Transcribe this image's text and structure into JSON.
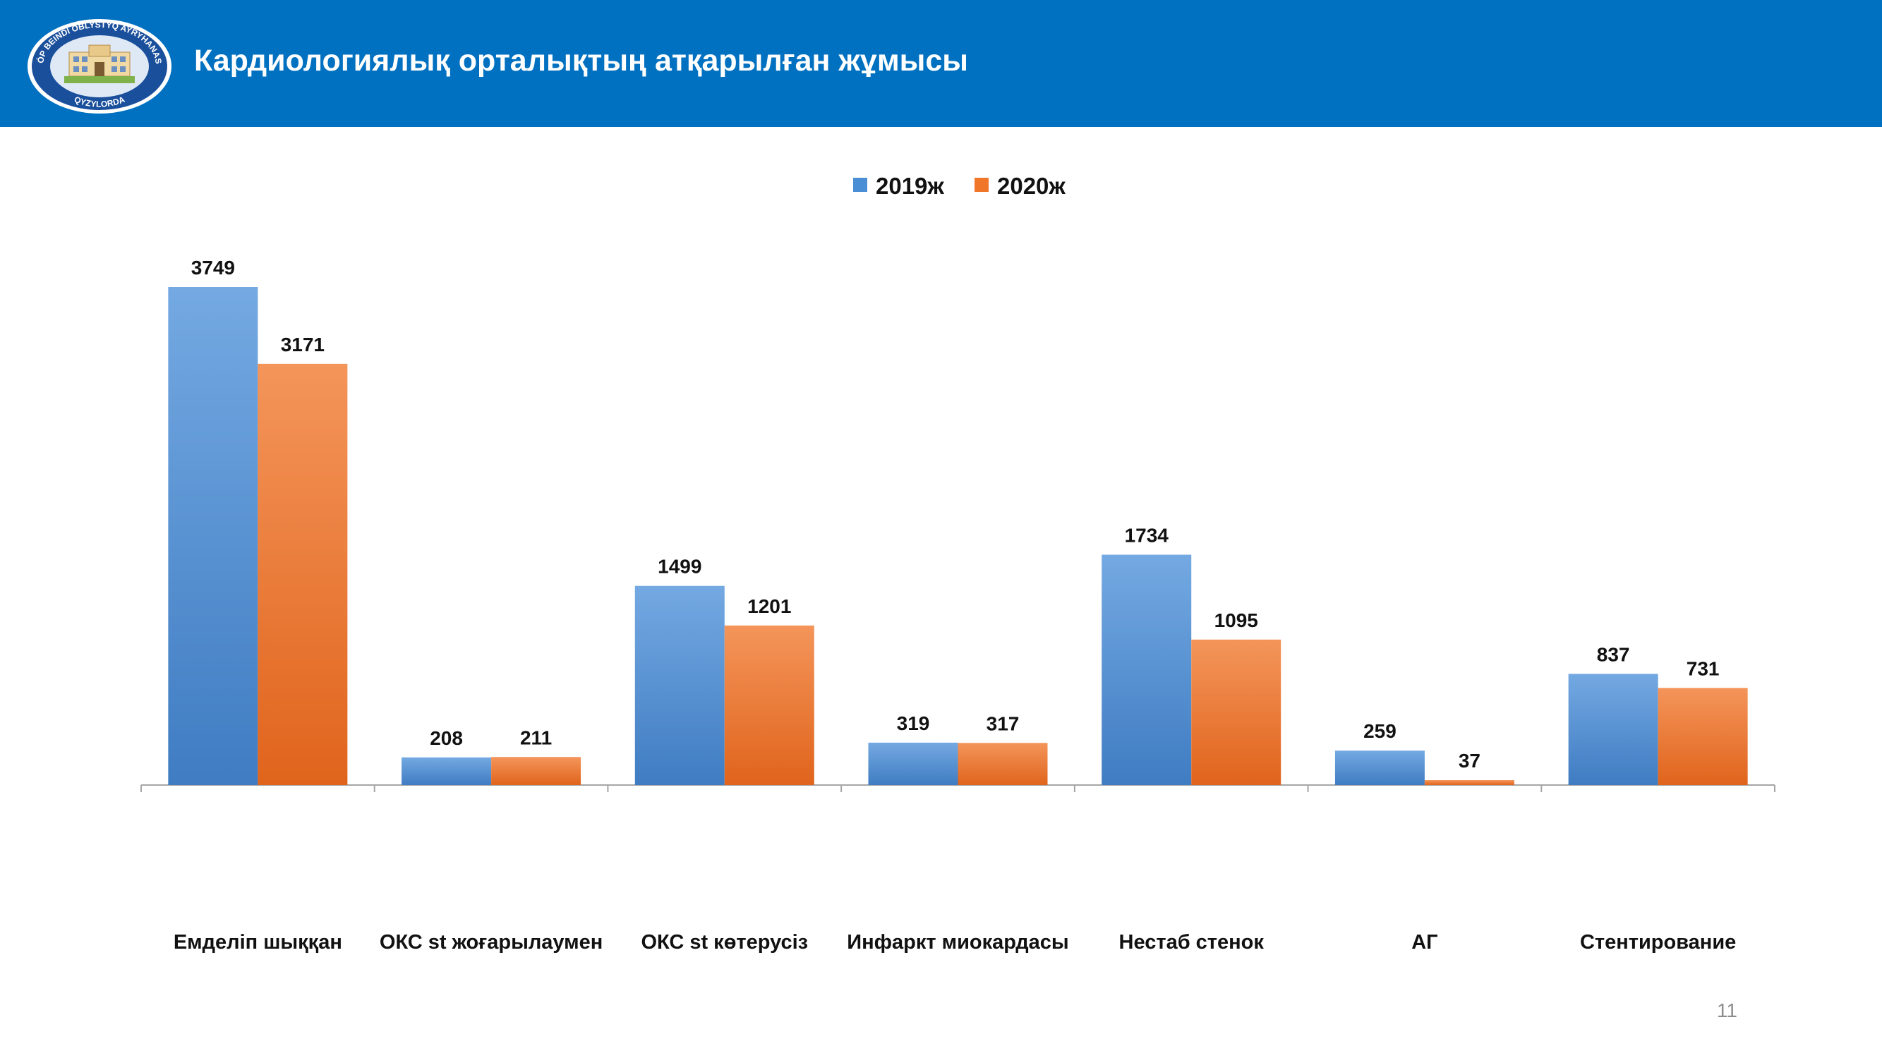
{
  "header": {
    "title": "Кардиологиялық орталықтың атқарылған жұмысы",
    "logo": {
      "icon": "hospital-seal-logo",
      "text_top": "KÓP BEINDI OBLYSTYQ AYRYHANASY",
      "text_bottom": "QYZYLORDA"
    }
  },
  "page_number": "11",
  "colors": {
    "header_bg": "#0070c0",
    "series_2019": "#4a8fd6",
    "series_2020": "#f0762a"
  },
  "chart_data": {
    "type": "bar",
    "categories": [
      "Емделіп шыққан",
      "ОКС st жоғарылаумен",
      "ОКС st көтерусіз",
      "Инфаркт миокардасы",
      "Нестаб стенок",
      "АГ",
      "Стентирование"
    ],
    "series": [
      {
        "name": "2019ж",
        "values": [
          3749,
          208,
          1499,
          319,
          1734,
          259,
          837
        ]
      },
      {
        "name": "2020ж",
        "values": [
          3171,
          211,
          1201,
          317,
          1095,
          37,
          731
        ]
      }
    ],
    "title": "",
    "xlabel": "",
    "ylabel": "",
    "ylim": [
      0,
      3749
    ],
    "grid": false,
    "legend_position": "top-center",
    "data_labels": true
  }
}
